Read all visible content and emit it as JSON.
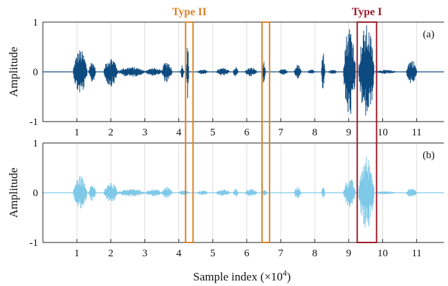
{
  "chart_data": {
    "type": "line",
    "xlabel": "Sample index (×10",
    "xlabel_exponent": "4",
    "xlabel_close": ")",
    "ylabel": "Amplitude",
    "xlim": [
      0,
      11.8
    ],
    "x_ticks": [
      1,
      2,
      3,
      4,
      5,
      6,
      7,
      8,
      9,
      10,
      11
    ],
    "grid": "vertical",
    "panels": [
      {
        "tag": "(a)",
        "color": "#0d4a7f",
        "ylim": [
          -1,
          1
        ],
        "y_ticks": [
          1,
          0,
          -1
        ],
        "y_tick_labels": [
          "1",
          "0",
          "-1"
        ],
        "segments": [
          {
            "start": 0.9,
            "end": 1.3,
            "amp": 0.45
          },
          {
            "start": 1.35,
            "end": 1.55,
            "amp": 0.22
          },
          {
            "start": 1.8,
            "end": 2.2,
            "amp": 0.3
          },
          {
            "start": 2.2,
            "end": 3.0,
            "amp": 0.1
          },
          {
            "start": 3.0,
            "end": 3.5,
            "amp": 0.08
          },
          {
            "start": 3.5,
            "end": 3.8,
            "amp": 0.22
          },
          {
            "start": 4.05,
            "end": 4.15,
            "amp": 0.15
          },
          {
            "start": 4.22,
            "end": 4.3,
            "amp": 0.55
          },
          {
            "start": 4.55,
            "end": 4.85,
            "amp": 0.05
          },
          {
            "start": 5.1,
            "end": 5.5,
            "amp": 0.08
          },
          {
            "start": 5.6,
            "end": 5.75,
            "amp": 0.1
          },
          {
            "start": 5.95,
            "end": 6.3,
            "amp": 0.09
          },
          {
            "start": 6.45,
            "end": 6.55,
            "amp": 0.22
          },
          {
            "start": 6.95,
            "end": 7.2,
            "amp": 0.06
          },
          {
            "start": 7.4,
            "end": 7.6,
            "amp": 0.15
          },
          {
            "start": 7.8,
            "end": 8.0,
            "amp": 0.05
          },
          {
            "start": 8.2,
            "end": 8.3,
            "amp": 0.4
          },
          {
            "start": 8.4,
            "end": 8.65,
            "amp": 0.05
          },
          {
            "start": 8.85,
            "end": 9.2,
            "amp": 0.95
          },
          {
            "start": 9.3,
            "end": 9.75,
            "amp": 0.95
          },
          {
            "start": 9.75,
            "end": 10.4,
            "amp": 0.04
          },
          {
            "start": 10.7,
            "end": 11.0,
            "amp": 0.25
          }
        ]
      },
      {
        "tag": "(b)",
        "color": "#7ec8e8",
        "ylim": [
          -1,
          1
        ],
        "y_ticks": [
          1,
          0,
          -1
        ],
        "y_tick_labels": [
          "1",
          "0",
          "-1"
        ],
        "segments": [
          {
            "start": 0.9,
            "end": 1.3,
            "amp": 0.35
          },
          {
            "start": 1.35,
            "end": 1.55,
            "amp": 0.18
          },
          {
            "start": 1.8,
            "end": 2.2,
            "amp": 0.2
          },
          {
            "start": 2.2,
            "end": 3.0,
            "amp": 0.08
          },
          {
            "start": 3.0,
            "end": 3.5,
            "amp": 0.07
          },
          {
            "start": 3.5,
            "end": 3.8,
            "amp": 0.12
          },
          {
            "start": 4.0,
            "end": 4.3,
            "amp": 0.05
          },
          {
            "start": 4.55,
            "end": 4.85,
            "amp": 0.05
          },
          {
            "start": 5.1,
            "end": 5.5,
            "amp": 0.07
          },
          {
            "start": 5.6,
            "end": 5.75,
            "amp": 0.08
          },
          {
            "start": 5.95,
            "end": 6.3,
            "amp": 0.08
          },
          {
            "start": 6.45,
            "end": 6.6,
            "amp": 0.06
          },
          {
            "start": 7.4,
            "end": 7.6,
            "amp": 0.12
          },
          {
            "start": 8.2,
            "end": 8.3,
            "amp": 0.12
          },
          {
            "start": 8.85,
            "end": 9.2,
            "amp": 0.3
          },
          {
            "start": 9.3,
            "end": 9.75,
            "amp": 0.75
          },
          {
            "start": 9.75,
            "end": 10.4,
            "amp": 0.03
          },
          {
            "start": 10.7,
            "end": 11.0,
            "amp": 0.1
          }
        ]
      }
    ],
    "highlight_regions": [
      {
        "label": "Type II",
        "color": "#d9822b",
        "x_start": 4.2,
        "x_end": 4.42,
        "show_label": true
      },
      {
        "label": "Type II",
        "color": "#d9822b",
        "x_start": 6.45,
        "x_end": 6.67,
        "show_label": false
      },
      {
        "label": "Type I",
        "color": "#9b1b2a",
        "x_start": 9.25,
        "x_end": 9.82,
        "show_label": true
      }
    ]
  }
}
